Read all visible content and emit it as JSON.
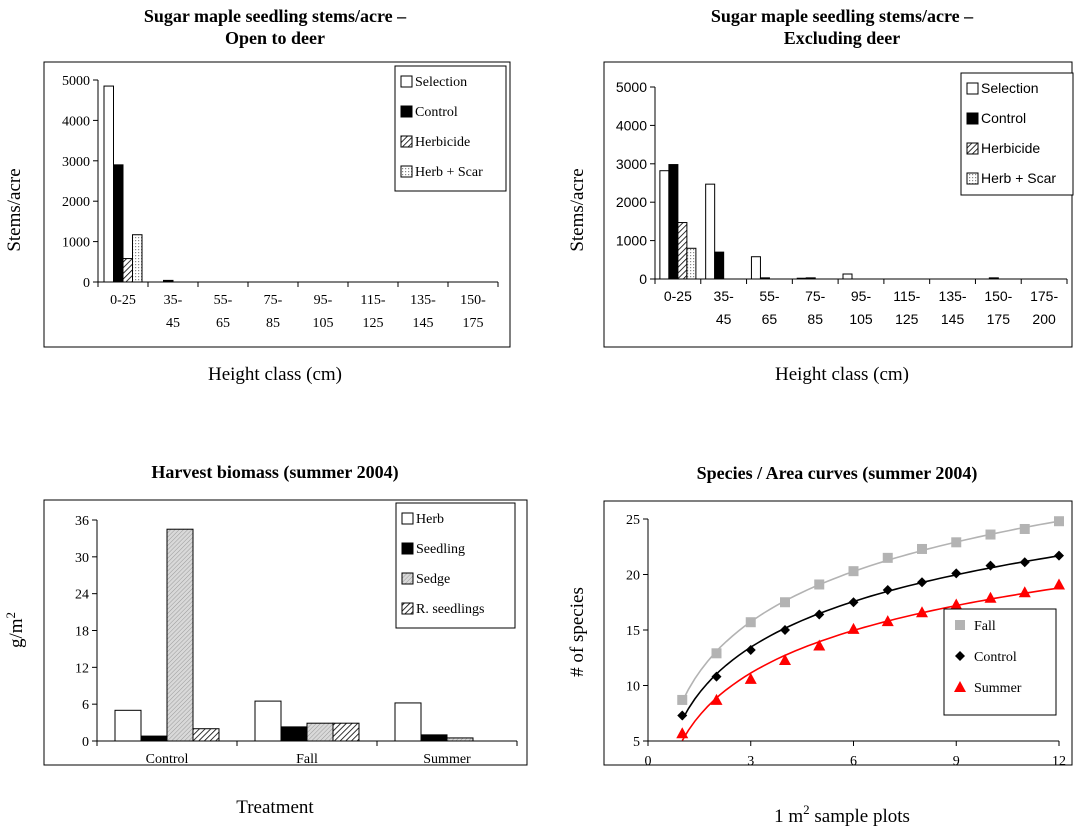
{
  "chart_data": [
    {
      "type": "bar",
      "title": "Sugar maple seedling stems/acre –",
      "subtitle": "Open to deer",
      "xlabel": "Height class (cm)",
      "ylabel": "Stems/acre",
      "ylim": [
        0,
        5000
      ],
      "yticks": [
        0,
        1000,
        2000,
        3000,
        4000,
        5000
      ],
      "categories": [
        [
          "0-25",
          ""
        ],
        [
          "35-",
          "45"
        ],
        [
          "55-",
          "65"
        ],
        [
          "75-",
          "85"
        ],
        [
          "95-",
          "105"
        ],
        [
          "115-",
          "125"
        ],
        [
          "135-",
          "145"
        ],
        [
          "150-",
          "175"
        ]
      ],
      "series": [
        {
          "name": "Selection",
          "pattern": "white",
          "values": [
            4850,
            0,
            0,
            0,
            0,
            0,
            0,
            0
          ]
        },
        {
          "name": "Control",
          "pattern": "black",
          "values": [
            2900,
            40,
            0,
            0,
            0,
            0,
            0,
            0
          ]
        },
        {
          "name": "Herbicide",
          "pattern": "hatch",
          "values": [
            580,
            0,
            0,
            0,
            0,
            0,
            0,
            0
          ]
        },
        {
          "name": "Herb + Scar",
          "pattern": "light",
          "values": [
            1170,
            0,
            0,
            0,
            0,
            0,
            0,
            0
          ]
        }
      ],
      "legend": "top-right",
      "grid": false
    },
    {
      "type": "bar",
      "title": "Sugar maple seedling stems/acre –",
      "subtitle": "Excluding deer",
      "xlabel": "Height class (cm)",
      "ylabel": "Stems/acre",
      "ylim": [
        0,
        5000
      ],
      "yticks": [
        0,
        1000,
        2000,
        3000,
        4000,
        5000
      ],
      "categories": [
        [
          "0-25",
          ""
        ],
        [
          "35-",
          "45"
        ],
        [
          "55-",
          "65"
        ],
        [
          "75-",
          "85"
        ],
        [
          "95-",
          "105"
        ],
        [
          "115-",
          "125"
        ],
        [
          "135-",
          "145"
        ],
        [
          "150-",
          "175"
        ],
        [
          "175-",
          "200"
        ]
      ],
      "series": [
        {
          "name": "Selection",
          "pattern": "white",
          "values": [
            2820,
            2470,
            580,
            20,
            130,
            0,
            0,
            0,
            0
          ]
        },
        {
          "name": "Control",
          "pattern": "black",
          "values": [
            2980,
            700,
            30,
            30,
            0,
            0,
            0,
            30,
            0
          ]
        },
        {
          "name": "Herbicide",
          "pattern": "hatch",
          "values": [
            1470,
            0,
            0,
            0,
            0,
            0,
            0,
            0,
            0
          ]
        },
        {
          "name": "Herb + Scar",
          "pattern": "light",
          "values": [
            800,
            0,
            0,
            0,
            0,
            0,
            0,
            0,
            0
          ]
        }
      ],
      "legend": "top-right",
      "grid": false
    },
    {
      "type": "bar",
      "title": "Harvest biomass (summer 2004)",
      "xlabel": "Treatment",
      "ylabel": "g/m",
      "ylabel_sup": "2",
      "ylim": [
        0,
        36
      ],
      "yticks": [
        0,
        6,
        12,
        18,
        24,
        30,
        36
      ],
      "categories": [
        "Control",
        "Fall",
        "Summer"
      ],
      "series": [
        {
          "name": "Herb",
          "pattern": "white",
          "values": [
            5.0,
            6.5,
            6.2
          ]
        },
        {
          "name": "Seedling",
          "pattern": "black",
          "values": [
            0.8,
            2.3,
            1.0
          ]
        },
        {
          "name": "Sedge",
          "pattern": "gray",
          "values": [
            34.5,
            2.9,
            0.5
          ]
        },
        {
          "name": "R. seedlings",
          "pattern": "hatch",
          "values": [
            2.0,
            2.9,
            0
          ]
        }
      ],
      "legend": "top-right",
      "grid": false
    },
    {
      "type": "scatter",
      "title": "Species / Area curves (summer 2004)",
      "xlabel": "1 m",
      "xlabel_sup": "2",
      "xlabel_suffix": " sample plots",
      "ylabel": "# of species",
      "xlim": [
        0,
        12
      ],
      "ylim": [
        5,
        25
      ],
      "xticks": [
        0,
        3,
        6,
        9,
        12
      ],
      "yticks": [
        5,
        10,
        15,
        20,
        25
      ],
      "x": [
        1,
        2,
        3,
        4,
        5,
        6,
        7,
        8,
        9,
        10,
        11,
        12
      ],
      "series": [
        {
          "name": "Fall",
          "marker": "square",
          "color": "#b3b3b3",
          "values": [
            8.7,
            12.9,
            15.7,
            17.5,
            19.1,
            20.3,
            21.5,
            22.3,
            22.9,
            23.6,
            24.1,
            24.8
          ]
        },
        {
          "name": "Control",
          "marker": "diamond",
          "color": "#000000",
          "values": [
            7.3,
            10.8,
            13.2,
            15.0,
            16.4,
            17.5,
            18.6,
            19.3,
            20.1,
            20.8,
            21.1,
            21.7
          ]
        },
        {
          "name": "Summer",
          "marker": "triangle",
          "color": "#ff0000",
          "values": [
            5.7,
            8.7,
            10.6,
            12.3,
            13.6,
            15.1,
            15.8,
            16.6,
            17.3,
            17.9,
            18.4,
            19.1
          ]
        }
      ],
      "trendline": "logarithmic",
      "legend": "bottom-right",
      "grid": false
    }
  ]
}
